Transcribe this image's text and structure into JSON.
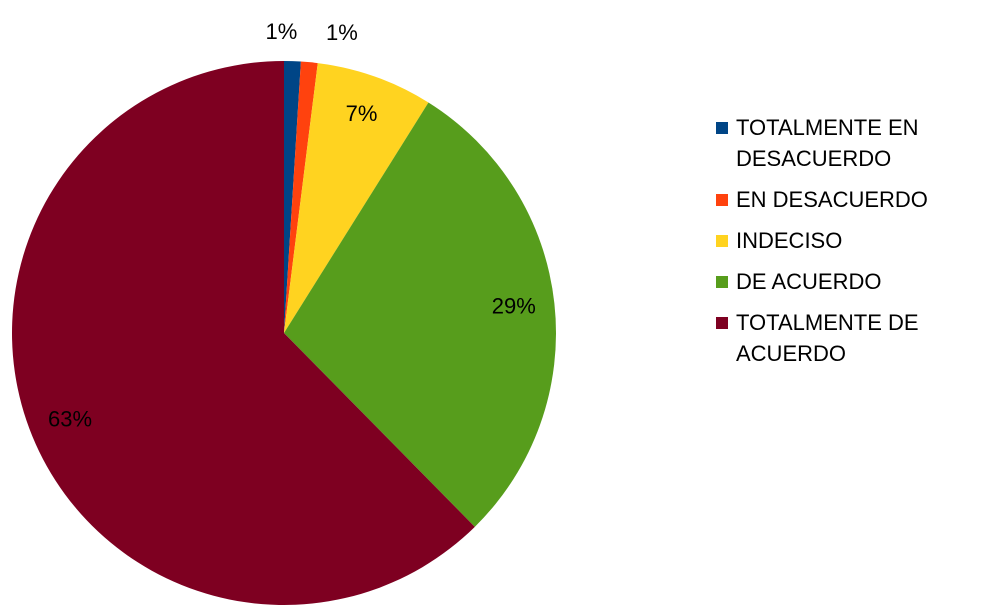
{
  "chart_data": {
    "type": "pie",
    "categories": [
      "TOTALMENTE EN DESACUERDO",
      "EN DESACUERDO",
      "INDECISO",
      "DE ACUERDO",
      "TOTALMENTE DE ACUERDO"
    ],
    "values": [
      1,
      1,
      7,
      29,
      63
    ],
    "value_labels": [
      "1%",
      "1%",
      "7%",
      "29%",
      "63%"
    ],
    "colors": [
      "#004586",
      "#ff420e",
      "#ffd320",
      "#579d1c",
      "#7e0021"
    ],
    "legend": "right"
  }
}
